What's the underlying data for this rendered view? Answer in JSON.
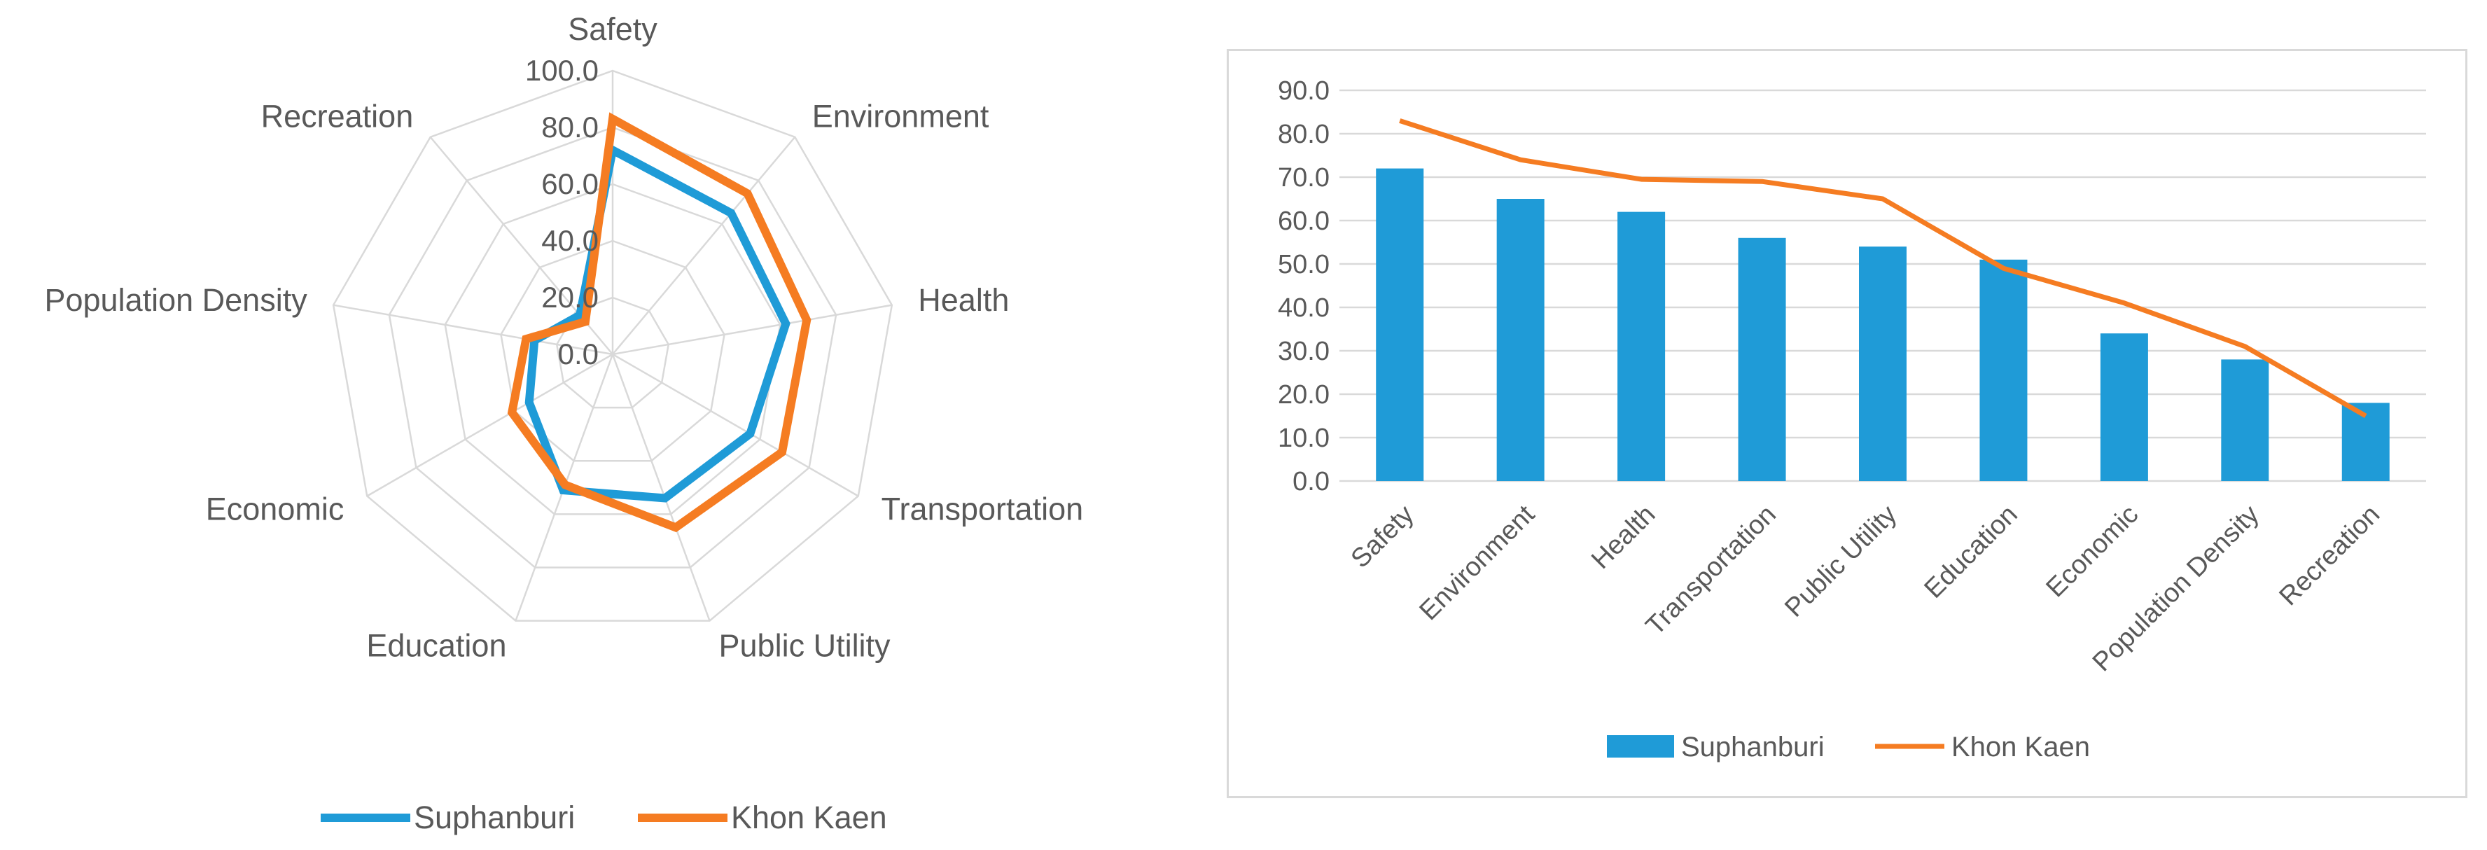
{
  "chart_data": [
    {
      "type": "radar",
      "categories": [
        "Safety",
        "Environment",
        "Health",
        "Transportation",
        "Public Utility",
        "Education",
        "Economic",
        "Population Density",
        "Recreation"
      ],
      "series": [
        {
          "name": "Suphanburi",
          "values": [
            72,
            65,
            62,
            56,
            54,
            51,
            34,
            28,
            18
          ]
        },
        {
          "name": "Khon Kaen",
          "values": [
            83,
            74,
            69.5,
            69,
            65,
            49,
            41,
            31,
            15
          ]
        }
      ],
      "tick_labels": [
        "0.0",
        "20.0",
        "40.0",
        "60.0",
        "80.0",
        "100.0"
      ],
      "rlim": [
        0,
        100
      ],
      "legend_position": "bottom",
      "colors": {
        "Suphanburi": "#1f9bd7",
        "Khon Kaen": "#f57c22",
        "grid": "#d9d9d9"
      }
    },
    {
      "type": "bar",
      "categories": [
        "Safety",
        "Environment",
        "Health",
        "Transportation",
        "Public Utility",
        "Education",
        "Economic",
        "Population Density",
        "Recreation"
      ],
      "series": [
        {
          "name": "Suphanburi",
          "kind": "bar",
          "values": [
            72,
            65,
            62,
            56,
            54,
            51,
            34,
            28,
            18
          ]
        },
        {
          "name": "Khon Kaen",
          "kind": "line",
          "values": [
            83,
            74,
            69.5,
            69,
            65,
            49,
            41,
            31,
            15
          ]
        }
      ],
      "tick_labels": [
        "0.0",
        "10.0",
        "20.0",
        "30.0",
        "40.0",
        "50.0",
        "60.0",
        "70.0",
        "80.0",
        "90.0"
      ],
      "ylim": [
        0,
        90
      ],
      "grid": true,
      "legend_position": "bottom",
      "colors": {
        "Suphanburi": "#1f9bd7",
        "Khon Kaen": "#f57c22",
        "grid": "#d9d9d9"
      }
    }
  ]
}
